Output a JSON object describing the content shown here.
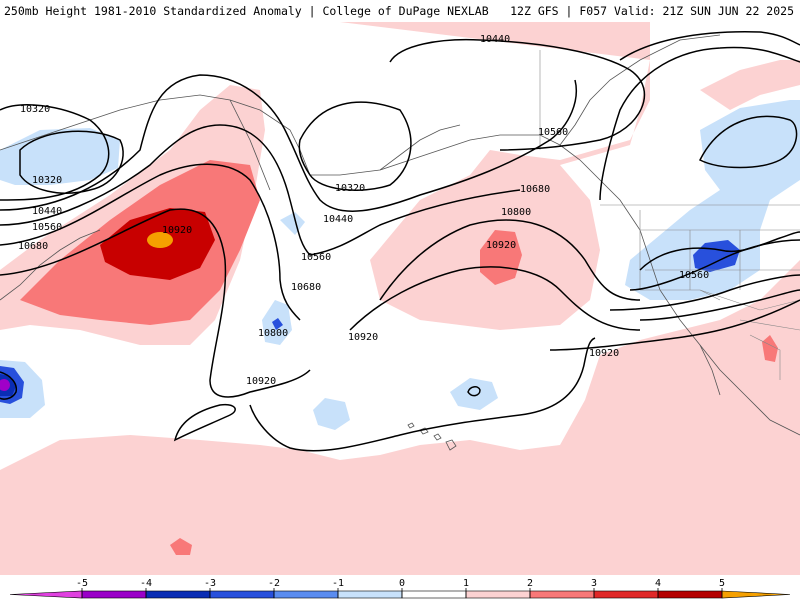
{
  "header": {
    "title_left": "250mb Height 1981-2010 Standardized Anomaly | College of DuPage NEXLAB",
    "title_right": "12Z GFS | F057 Valid: 21Z SUN JUN 22 2025"
  },
  "contour_labels": [
    "10440",
    "10320",
    "10320",
    "10440",
    "10560",
    "10680",
    "10920",
    "10320",
    "10440",
    "10560",
    "10680",
    "10800",
    "10920",
    "10560",
    "10680",
    "10800",
    "10920",
    "10920",
    "10560",
    "10920"
  ],
  "legend": {
    "ticks": [
      "-5",
      "-4",
      "-3",
      "-2",
      "-1",
      "0",
      "1",
      "2",
      "3",
      "4",
      "5"
    ],
    "colors": [
      "#e040e0",
      "#9a00c8",
      "#0a2db4",
      "#2850dc",
      "#5a8cf0",
      "#c8e1fa",
      "#ffffff",
      "#fcd2d2",
      "#f87878",
      "#e02828",
      "#b40000",
      "#f5a000",
      "#ffd700"
    ]
  }
}
